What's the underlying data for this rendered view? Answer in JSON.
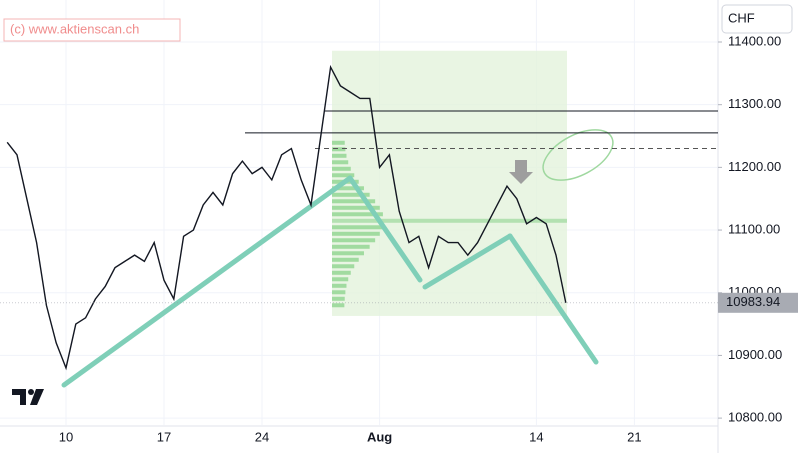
{
  "chart_data": {
    "type": "line",
    "watermark": "(c) www.aktienscan.ch",
    "currency": "CHF",
    "color": "#131722",
    "categories": [
      null,
      null,
      null,
      null,
      null,
      null,
      "10",
      null,
      null,
      null,
      null,
      null,
      null,
      null,
      null,
      null,
      "17",
      null,
      null,
      null,
      null,
      null,
      null,
      null,
      null,
      null,
      "24",
      null,
      null,
      null,
      null,
      null,
      null,
      null,
      null,
      null,
      null,
      null,
      "Aug",
      null,
      null,
      null,
      null,
      null,
      null,
      null,
      null,
      null,
      null,
      null,
      null,
      null,
      null,
      null,
      "14",
      null,
      null,
      null,
      null,
      null,
      null,
      null,
      null,
      null,
      "21",
      null,
      null,
      null,
      null,
      null,
      null,
      null,
      null
    ],
    "values": [
      11240,
      11220,
      11150,
      11080,
      10980,
      10920,
      10880,
      10950,
      10960,
      10990,
      11010,
      11040,
      11050,
      11060,
      11050,
      11080,
      11020,
      10990,
      11090,
      11100,
      11140,
      11160,
      11140,
      11190,
      11210,
      11190,
      11200,
      11180,
      11220,
      11230,
      11180,
      11140,
      11250,
      11360,
      11330,
      11320,
      11310,
      11310,
      11200,
      11220,
      11130,
      11080,
      11090,
      11040,
      11090,
      11080,
      11080,
      11060,
      11080,
      11110,
      11140,
      11170,
      11150,
      11110,
      11120,
      11110,
      11060,
      10984,
      null,
      null,
      null,
      null,
      null,
      null,
      null,
      null,
      null,
      null,
      null,
      null,
      null,
      null,
      null
    ],
    "last_price": 10983.94,
    "levels": [
      11290,
      11255
    ],
    "dashed_level": 11230,
    "zone": [
      10963,
      11386
    ],
    "zone_color": "#e3f2dc",
    "ylim": [
      10789,
      11467
    ],
    "yticks": [
      {
        "value": 10800,
        "label": "10800.00"
      },
      {
        "value": 10900,
        "label": "10900.00"
      },
      {
        "value": 11000,
        "label": "11000.00"
      },
      {
        "value": 11100,
        "label": "11100.00"
      },
      {
        "value": 11200,
        "label": "11200.00"
      },
      {
        "value": 11300,
        "label": "11300.00"
      },
      {
        "value": 11400,
        "label": "11400.00"
      }
    ],
    "grid": true
  }
}
